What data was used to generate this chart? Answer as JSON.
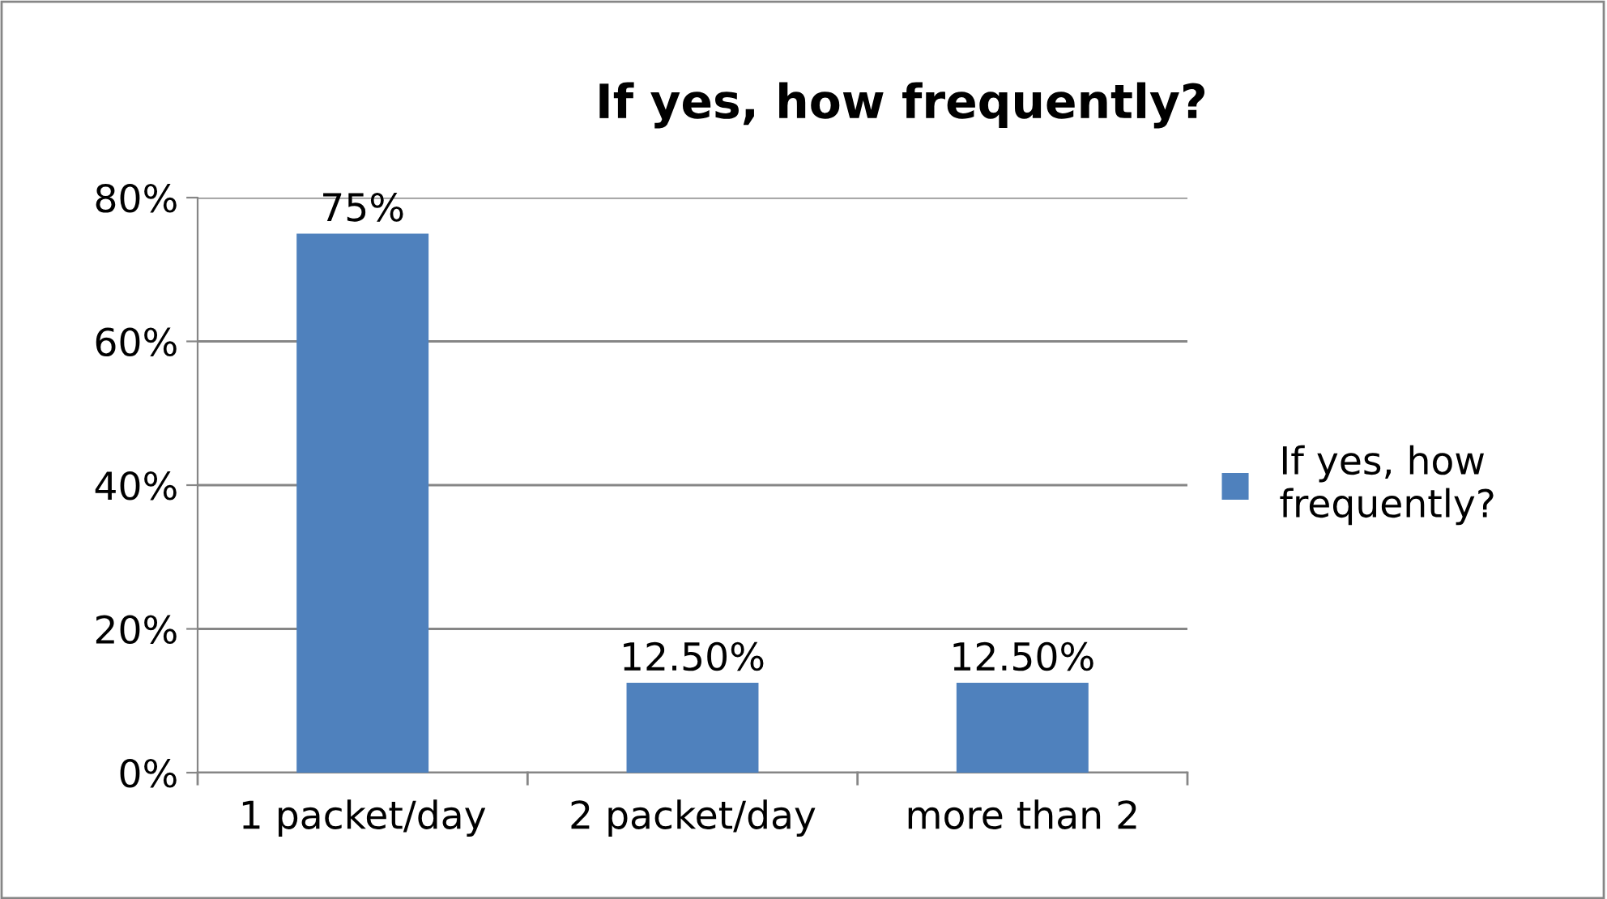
{
  "chart_data": {
    "type": "bar",
    "title": "If yes, how frequently?",
    "categories": [
      "1 packet/day",
      "2 packet/day",
      "more than 2"
    ],
    "series": [
      {
        "name": "If yes, how frequently?",
        "color": "#4f81bd",
        "values": [
          75,
          12.5,
          12.5
        ],
        "value_labels": [
          "75%",
          "12.50%",
          "12.50%"
        ]
      }
    ],
    "ylim": [
      0,
      80
    ],
    "yticks": [
      {
        "value": 0,
        "label": "0%"
      },
      {
        "value": 20,
        "label": "20%"
      },
      {
        "value": 40,
        "label": "40%"
      },
      {
        "value": 60,
        "label": "60%"
      },
      {
        "value": 80,
        "label": "80%"
      }
    ],
    "grid": "y",
    "legend": "right"
  }
}
